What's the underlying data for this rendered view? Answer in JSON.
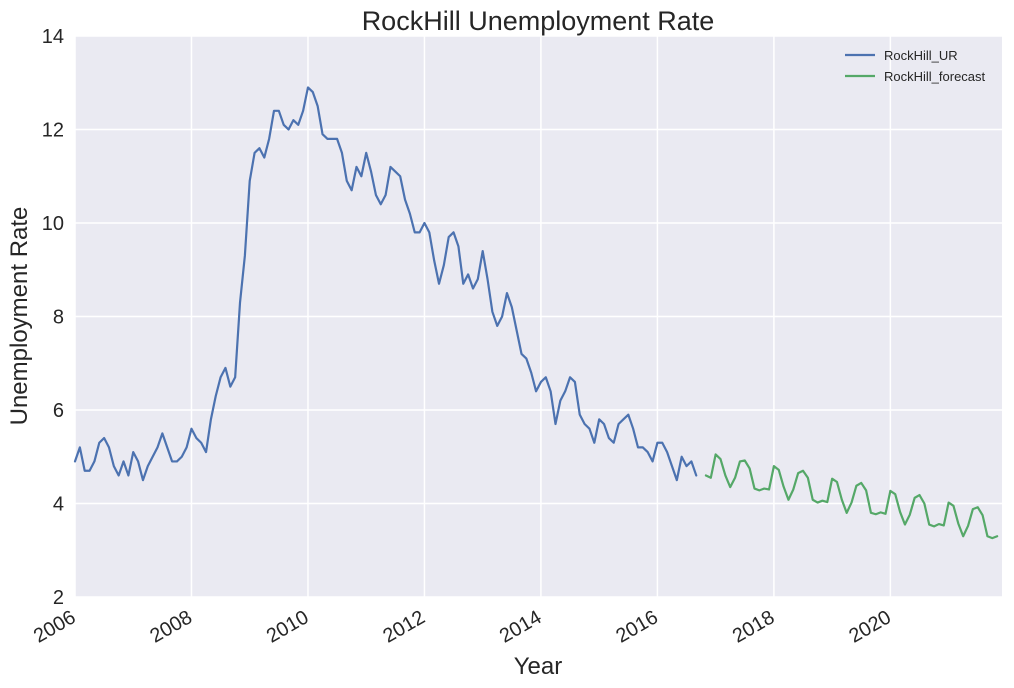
{
  "chart_data": {
    "type": "line",
    "title": "RockHill Unemployment Rate",
    "xlabel": "Year",
    "ylabel": "Unemployment Rate",
    "xlim": [
      "2006-01",
      "2021-12"
    ],
    "ylim": [
      2,
      14
    ],
    "x_ticks": [
      "2006",
      "2008",
      "2010",
      "2012",
      "2014",
      "2016",
      "2018",
      "2020"
    ],
    "y_ticks": [
      "2",
      "4",
      "6",
      "8",
      "10",
      "12",
      "14"
    ],
    "grid": true,
    "legend_position": "top-right",
    "background": "#eaeaf2",
    "series": [
      {
        "name": "RockHill_UR",
        "color": "#4c72b0",
        "start": "2006-01",
        "frequency": "monthly",
        "values": [
          4.9,
          5.2,
          4.7,
          4.7,
          4.9,
          5.3,
          5.4,
          5.2,
          4.8,
          4.6,
          4.9,
          4.6,
          5.1,
          4.9,
          4.5,
          4.8,
          5.0,
          5.2,
          5.5,
          5.2,
          4.9,
          4.9,
          5.0,
          5.2,
          5.6,
          5.4,
          5.3,
          5.1,
          5.8,
          6.3,
          6.7,
          6.9,
          6.5,
          6.7,
          8.3,
          9.3,
          10.9,
          11.5,
          11.6,
          11.4,
          11.8,
          12.4,
          12.4,
          12.1,
          12.0,
          12.2,
          12.1,
          12.4,
          12.9,
          12.8,
          12.5,
          11.9,
          11.8,
          11.8,
          11.8,
          11.5,
          10.9,
          10.7,
          11.2,
          11.0,
          11.5,
          11.1,
          10.6,
          10.4,
          10.6,
          11.2,
          11.1,
          11.0,
          10.5,
          10.2,
          9.8,
          9.8,
          10.0,
          9.8,
          9.2,
          8.7,
          9.1,
          9.7,
          9.8,
          9.5,
          8.7,
          8.9,
          8.6,
          8.8,
          9.4,
          8.8,
          8.1,
          7.8,
          8.0,
          8.5,
          8.2,
          7.7,
          7.2,
          7.1,
          6.8,
          6.4,
          6.6,
          6.7,
          6.4,
          5.7,
          6.2,
          6.4,
          6.7,
          6.6,
          5.9,
          5.7,
          5.6,
          5.3,
          5.8,
          5.7,
          5.4,
          5.3,
          5.7,
          5.8,
          5.9,
          5.6,
          5.2,
          5.2,
          5.1,
          4.9,
          5.3,
          5.3,
          5.1,
          4.8,
          4.5,
          5.0,
          4.8,
          4.9,
          4.6
        ]
      },
      {
        "name": "RockHill_forecast",
        "color": "#55a868",
        "start": "2016-11",
        "frequency": "monthly",
        "values": [
          4.6,
          4.55,
          5.05,
          4.95,
          4.6,
          4.35,
          4.55,
          4.9,
          4.92,
          4.75,
          4.32,
          4.28,
          4.32,
          4.3,
          4.8,
          4.72,
          4.36,
          4.08,
          4.3,
          4.65,
          4.7,
          4.55,
          4.08,
          4.02,
          4.06,
          4.03,
          4.53,
          4.46,
          4.08,
          3.8,
          4.02,
          4.38,
          4.44,
          4.28,
          3.8,
          3.77,
          3.81,
          3.78,
          4.27,
          4.2,
          3.82,
          3.55,
          3.76,
          4.12,
          4.18,
          4.0,
          3.55,
          3.51,
          3.56,
          3.53,
          4.02,
          3.95,
          3.57,
          3.3,
          3.52,
          3.88,
          3.92,
          3.75,
          3.3,
          3.26,
          3.3
        ]
      }
    ]
  }
}
